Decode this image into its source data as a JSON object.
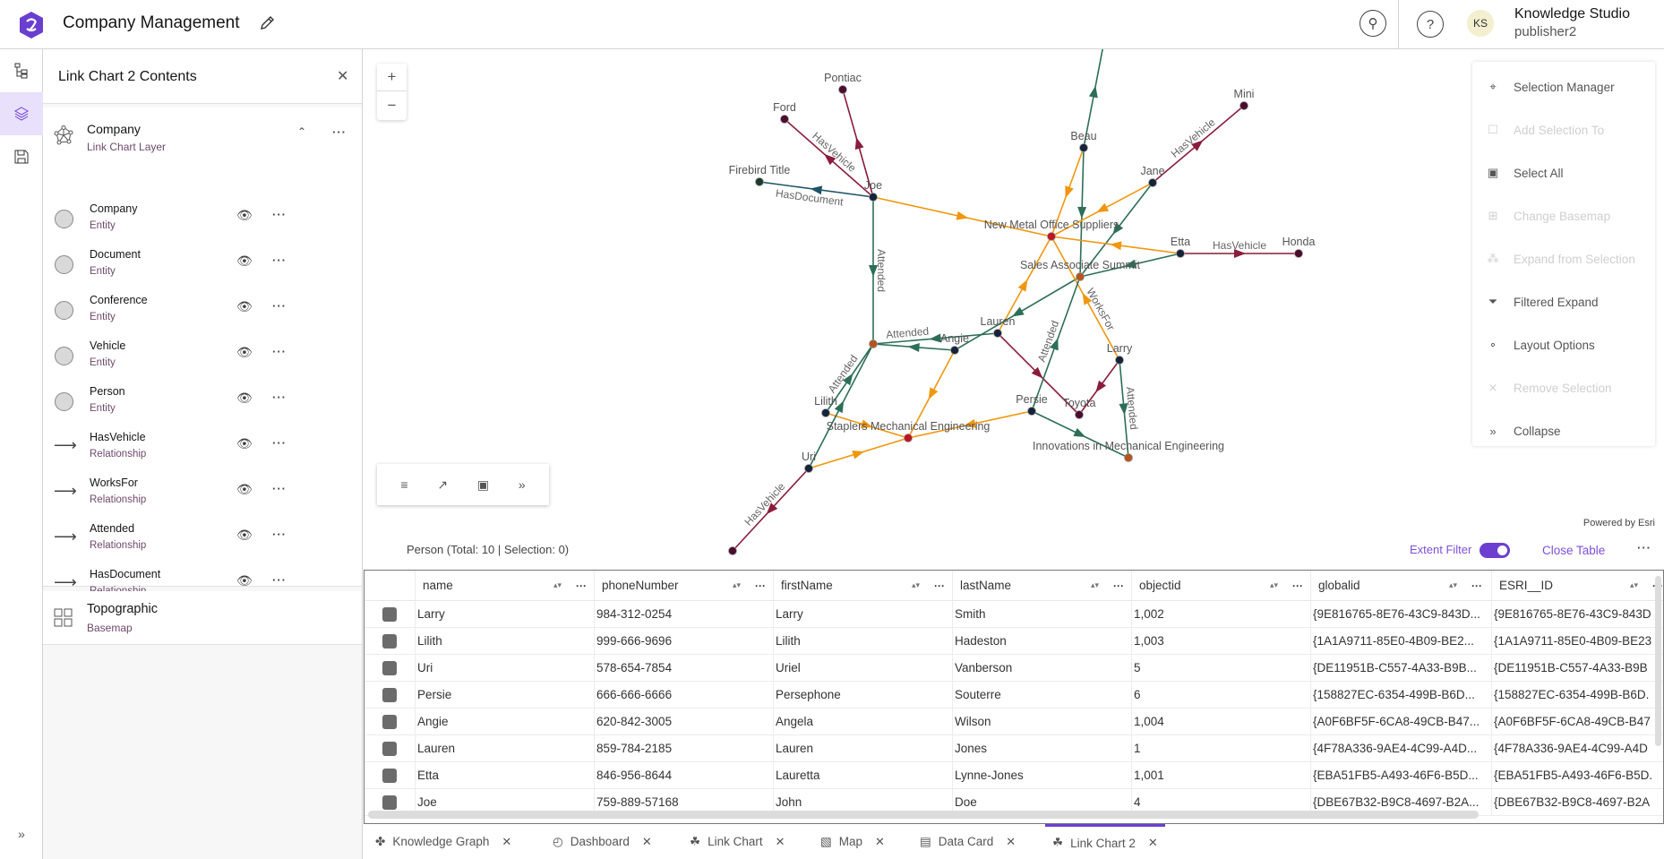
{
  "header": {
    "title": "Company Management",
    "user_initials": "KS",
    "user_name": "Knowledge Studio",
    "user_role": "publisher2"
  },
  "panel": {
    "title": "Link Chart 2 Contents",
    "layer": {
      "name": "Company",
      "type": "Link Chart Layer"
    },
    "items": [
      {
        "name": "Company",
        "type": "Entity",
        "kind": "entity"
      },
      {
        "name": "Document",
        "type": "Entity",
        "kind": "entity"
      },
      {
        "name": "Conference",
        "type": "Entity",
        "kind": "entity"
      },
      {
        "name": "Vehicle",
        "type": "Entity",
        "kind": "entity"
      },
      {
        "name": "Person",
        "type": "Entity",
        "kind": "entity"
      },
      {
        "name": "HasVehicle",
        "type": "Relationship",
        "kind": "relationship"
      },
      {
        "name": "WorksFor",
        "type": "Relationship",
        "kind": "relationship"
      },
      {
        "name": "Attended",
        "type": "Relationship",
        "kind": "relationship"
      },
      {
        "name": "HasDocument",
        "type": "Relationship",
        "kind": "relationship"
      }
    ],
    "basemap": {
      "name": "Topographic",
      "type": "Basemap"
    }
  },
  "map": {
    "zoom_in": "+",
    "zoom_out": "−",
    "powered_by": "Powered by Esri",
    "edge_colors": {
      "HasVehicle": "#8a1c3c",
      "WorksFor": "#f0960f",
      "Attended": "#2d6e58",
      "HasDocument": "#1e5566"
    },
    "node_colors": {
      "Person": "#16243a",
      "Vehicle": "#4a0d2e",
      "Company": "#c0141e",
      "Conference": "#b5541c",
      "Document": "#1d3b2e"
    },
    "nodes": [
      {
        "label": "Pontiac",
        "type": "Vehicle"
      },
      {
        "label": "Ford",
        "type": "Vehicle"
      },
      {
        "label": "Firebird Title",
        "type": "Document"
      },
      {
        "label": "Joe",
        "type": "Person"
      },
      {
        "label": "Beau",
        "type": "Person"
      },
      {
        "label": "Jane",
        "type": "Person"
      },
      {
        "label": "Mini",
        "type": "Vehicle"
      },
      {
        "label": "New Metal Office Suppliers",
        "type": "Company"
      },
      {
        "label": "Etta",
        "type": "Person"
      },
      {
        "label": "Honda",
        "type": "Vehicle"
      },
      {
        "label": "Sales Associate Summit",
        "type": "Conference"
      },
      {
        "label": "Lauren",
        "type": "Person"
      },
      {
        "label": "Angie",
        "type": "Person"
      },
      {
        "label": "",
        "type": "Conference"
      },
      {
        "label": "Lilith",
        "type": "Person"
      },
      {
        "label": "Staplers Mechanical Engineering",
        "type": "Company"
      },
      {
        "label": "Uri",
        "type": "Person"
      },
      {
        "label": "Persie",
        "type": "Person"
      },
      {
        "label": "Toyota",
        "type": "Vehicle"
      },
      {
        "label": "Larry",
        "type": "Person"
      },
      {
        "label": "Innovations in Mechanical Engineering",
        "type": "Conference"
      },
      {
        "label": "",
        "type": "Vehicle"
      },
      {
        "label": "",
        "type": "Conference"
      }
    ],
    "edges": [
      {
        "from": 3,
        "to": 0,
        "type": "HasVehicle",
        "label": ""
      },
      {
        "from": 3,
        "to": 1,
        "type": "HasVehicle",
        "label": "HasVehicle"
      },
      {
        "from": 3,
        "to": 2,
        "type": "HasDocument",
        "label": "HasDocument"
      },
      {
        "from": 3,
        "to": 7,
        "type": "WorksFor",
        "label": ""
      },
      {
        "from": 3,
        "to": 13,
        "type": "Attended",
        "label": "Attended"
      },
      {
        "from": 4,
        "to": 22,
        "type": "Attended",
        "label": ""
      },
      {
        "from": 4,
        "to": 7,
        "type": "WorksFor",
        "label": ""
      },
      {
        "from": 4,
        "to": 10,
        "type": "Attended",
        "label": ""
      },
      {
        "from": 5,
        "to": 6,
        "type": "HasVehicle",
        "label": "HasVehicle"
      },
      {
        "from": 5,
        "to": 7,
        "type": "WorksFor",
        "label": ""
      },
      {
        "from": 5,
        "to": 10,
        "type": "Attended",
        "label": ""
      },
      {
        "from": 8,
        "to": 7,
        "type": "WorksFor",
        "label": ""
      },
      {
        "from": 8,
        "to": 9,
        "type": "HasVehicle",
        "label": "HasVehicle"
      },
      {
        "from": 8,
        "to": 10,
        "type": "Attended",
        "label": ""
      },
      {
        "from": 11,
        "to": 7,
        "type": "WorksFor",
        "label": ""
      },
      {
        "from": 11,
        "to": 13,
        "type": "Attended",
        "label": "Attended"
      },
      {
        "from": 11,
        "to": 18,
        "type": "HasVehicle",
        "label": ""
      },
      {
        "from": 12,
        "to": 13,
        "type": "Attended",
        "label": ""
      },
      {
        "from": 12,
        "to": 15,
        "type": "WorksFor",
        "label": ""
      },
      {
        "from": 10,
        "to": 12,
        "type": "Attended",
        "label": ""
      },
      {
        "from": 19,
        "to": 18,
        "type": "HasVehicle",
        "label": ""
      },
      {
        "from": 19,
        "to": 7,
        "type": "WorksFor",
        "label": "WorksFor"
      },
      {
        "from": 19,
        "to": 20,
        "type": "Attended",
        "label": "Attended"
      },
      {
        "from": 17,
        "to": 10,
        "type": "Attended",
        "label": "Attended"
      },
      {
        "from": 17,
        "to": 20,
        "type": "Attended",
        "label": ""
      },
      {
        "from": 17,
        "to": 15,
        "type": "WorksFor",
        "label": ""
      },
      {
        "from": 14,
        "to": 13,
        "type": "Attended",
        "label": "Attended"
      },
      {
        "from": 14,
        "to": 15,
        "type": "WorksFor",
        "label": ""
      },
      {
        "from": 16,
        "to": 13,
        "type": "Attended",
        "label": ""
      },
      {
        "from": 16,
        "to": 15,
        "type": "WorksFor",
        "label": ""
      },
      {
        "from": 16,
        "to": 21,
        "type": "HasVehicle",
        "label": "HasVehicle"
      }
    ]
  },
  "menu": [
    {
      "label": "Selection Manager",
      "icon": "selection-manager-icon",
      "enabled": true
    },
    {
      "label": "Add Selection To",
      "icon": "add-selection-icon",
      "enabled": false
    },
    {
      "label": "Select All",
      "icon": "select-all-icon",
      "enabled": true
    },
    {
      "label": "Change Basemap",
      "icon": "basemap-icon",
      "enabled": false
    },
    {
      "label": "Expand from Selection",
      "icon": "expand-icon",
      "enabled": false
    },
    {
      "label": "Filtered Expand",
      "icon": "filter-icon",
      "enabled": true
    },
    {
      "label": "Layout Options",
      "icon": "layout-icon",
      "enabled": true
    },
    {
      "label": "Remove Selection",
      "icon": "remove-selection-icon",
      "enabled": false
    },
    {
      "label": "Collapse",
      "icon": "collapse-icon",
      "enabled": true
    }
  ],
  "table": {
    "caption": "Person (Total: 10 | Selection: 0)",
    "extent_filter": "Extent Filter",
    "extent_filter_on": true,
    "close": "Close Table",
    "columns": [
      "name",
      "phoneNumber",
      "firstName",
      "lastName",
      "objectid",
      "globalid",
      "ESRI__ID"
    ],
    "rows": [
      [
        "Larry",
        "984-312-0254",
        "Larry",
        "Smith",
        "1,002",
        "{9E816765-8E76-43C9-843D...",
        "{9E816765-8E76-43C9-843D"
      ],
      [
        "Lilith",
        "999-666-9696",
        "Lilith",
        "Hadeston",
        "1,003",
        "{1A1A9711-85E0-4B09-BE2...",
        "{1A1A9711-85E0-4B09-BE23"
      ],
      [
        "Uri",
        "578-654-7854",
        "Uriel",
        "Vanberson",
        "5",
        "{DE11951B-C557-4A33-B9B...",
        "{DE11951B-C557-4A33-B9B"
      ],
      [
        "Persie",
        "666-666-6666",
        "Persephone",
        "Souterre",
        "6",
        "{158827EC-6354-499B-B6D...",
        "{158827EC-6354-499B-B6D."
      ],
      [
        "Angie",
        "620-842-3005",
        "Angela",
        "Wilson",
        "1,004",
        "{A0F6BF5F-6CA8-49CB-B47...",
        "{A0F6BF5F-6CA8-49CB-B47"
      ],
      [
        "Lauren",
        "859-784-2185",
        "Lauren",
        "Jones",
        "1",
        "{4F78A336-9AE4-4C99-A4D...",
        "{4F78A336-9AE4-4C99-A4D"
      ],
      [
        "Etta",
        "846-956-8644",
        "Lauretta",
        "Lynne-Jones",
        "1,001",
        "{EBA51FB5-A493-46F6-B5D...",
        "{EBA51FB5-A493-46F6-B5D."
      ],
      [
        "Joe",
        "759-889-57168",
        "John",
        "Doe",
        "4",
        "{DBE67B32-B9C8-4697-B2A...",
        "{DBE67B32-B9C8-4697-B2A"
      ]
    ]
  },
  "tabs": [
    {
      "label": "Knowledge Graph",
      "icon": "knowledge-graph-icon",
      "active": false
    },
    {
      "label": "Dashboard",
      "icon": "dashboard-icon",
      "active": false
    },
    {
      "label": "Link Chart",
      "icon": "link-chart-icon",
      "active": false
    },
    {
      "label": "Map",
      "icon": "map-icon",
      "active": false
    },
    {
      "label": "Data Card",
      "icon": "data-card-icon",
      "active": false
    },
    {
      "label": "Link Chart 2",
      "icon": "link-chart-icon",
      "active": true
    }
  ],
  "accent": "#6c3fd1"
}
